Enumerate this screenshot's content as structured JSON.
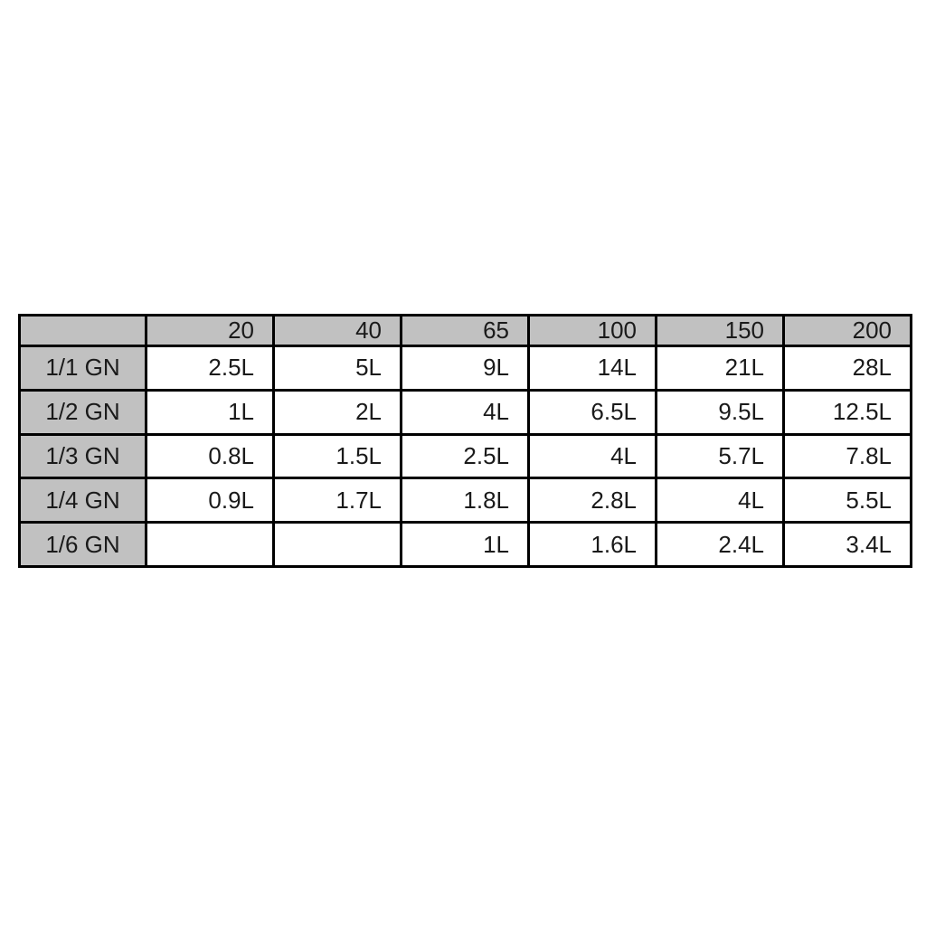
{
  "chart_data": {
    "type": "table",
    "title": "",
    "columns": [
      "",
      "20",
      "40",
      "65",
      "100",
      "150",
      "200"
    ],
    "rows": [
      {
        "label": "1/1 GN",
        "values": [
          "2.5L",
          "5L",
          "9L",
          "14L",
          "21L",
          "28L"
        ]
      },
      {
        "label": "1/2 GN",
        "values": [
          "1L",
          "2L",
          "4L",
          "6.5L",
          "9.5L",
          "12.5L"
        ]
      },
      {
        "label": "1/3 GN",
        "values": [
          "0.8L",
          "1.5L",
          "2.5L",
          "4L",
          "5.7L",
          "7.8L"
        ]
      },
      {
        "label": "1/4 GN",
        "values": [
          "0.9L",
          "1.7L",
          "1.8L",
          "2.8L",
          "4L",
          "5.5L"
        ]
      },
      {
        "label": "1/6 GN",
        "values": [
          "",
          "",
          "1L",
          "1.6L",
          "2.4L",
          "3.4L"
        ]
      }
    ],
    "colors": {
      "header_bg": "#c1c1c1",
      "label_column_bg": "#c1c1c1",
      "cell_bg": "#ffffff",
      "border": "#000000",
      "text": "#1a1a1a"
    },
    "layout": {
      "grid": "full-borders",
      "header_alignment": "right",
      "label_alignment": "center",
      "value_alignment": "right"
    }
  }
}
